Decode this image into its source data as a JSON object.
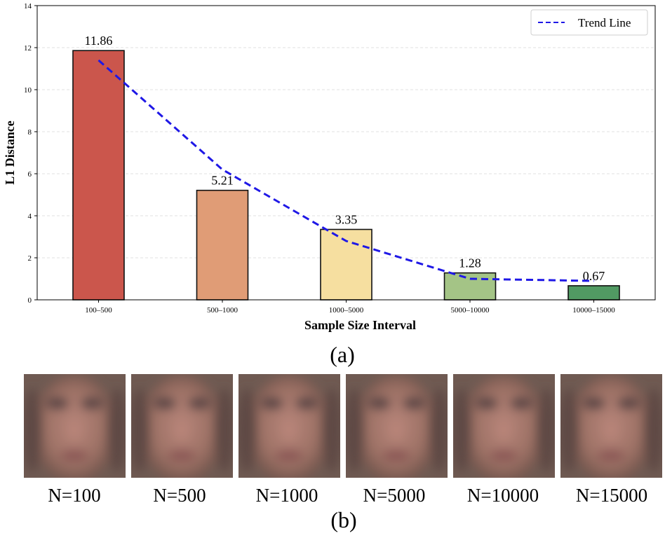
{
  "chart_data": {
    "type": "bar",
    "categories": [
      "100–500",
      "500–1000",
      "1000–5000",
      "5000–10000",
      "10000–15000"
    ],
    "values": [
      11.86,
      5.21,
      3.35,
      1.28,
      0.67
    ],
    "value_labels": [
      "11.86",
      "5.21",
      "3.35",
      "1.28",
      "0.67"
    ],
    "bar_colors": [
      "#cb564c",
      "#e09c76",
      "#f6dfa0",
      "#a4c486",
      "#519a63"
    ],
    "trend_line": {
      "name": "Trend Line",
      "values": [
        11.4,
        6.2,
        2.8,
        1.0,
        0.9
      ],
      "color": "#1f18e6",
      "style": "dashed"
    },
    "title": "",
    "xlabel": "Sample Size Interval",
    "ylabel": "L1 Distance",
    "ylim": [
      0,
      14
    ],
    "yticks": [
      0,
      2,
      4,
      6,
      8,
      10,
      12,
      14
    ],
    "grid": "y-dashed",
    "legend": "top-right"
  },
  "caption_a": "(a)",
  "caption_b": "(b)",
  "faces": [
    {
      "label": "N=100"
    },
    {
      "label": "N=500"
    },
    {
      "label": "N=1000"
    },
    {
      "label": "N=5000"
    },
    {
      "label": "N=10000"
    },
    {
      "label": "N=15000"
    }
  ]
}
